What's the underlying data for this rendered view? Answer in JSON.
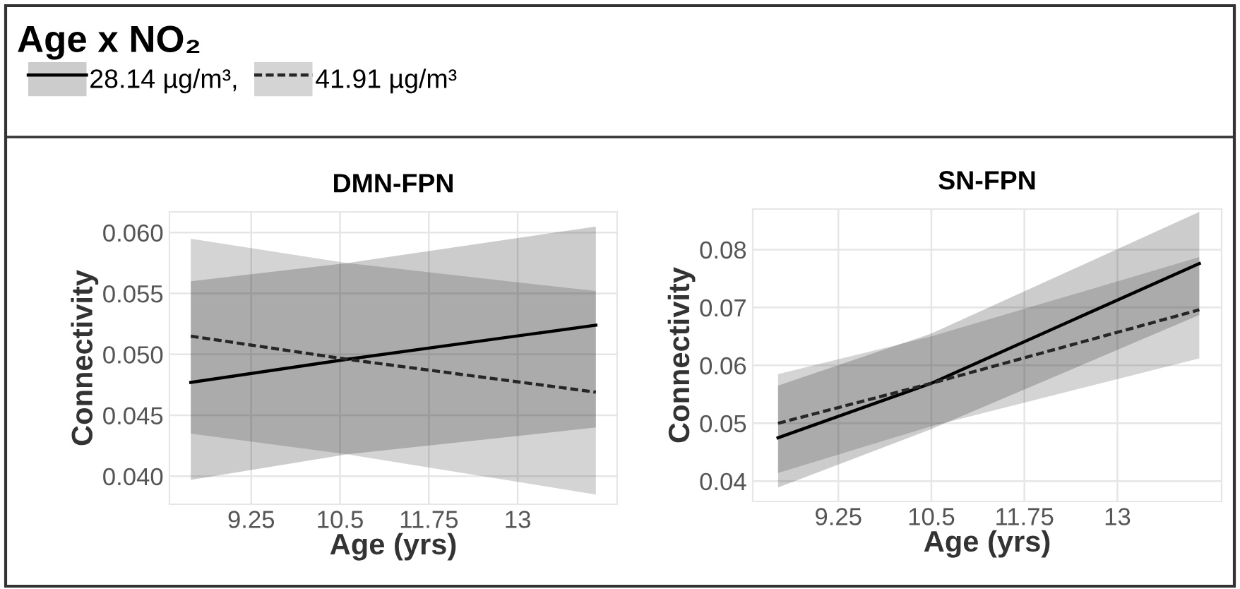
{
  "chart_data": [
    {
      "type": "other",
      "title": "Age x NO₂"
    },
    {
      "type": "line",
      "title": "DMN-FPN",
      "xlabel": "Age (yrs)",
      "ylabel": "Connectivity",
      "legend": "top",
      "grid": true,
      "marker": "none",
      "xlim": [
        8.1,
        14.4
      ],
      "xticks": [
        9.25,
        10.5,
        11.75,
        13
      ],
      "ylim": [
        0.0377,
        0.0617
      ],
      "yticks": [
        {
          "value": 0.04,
          "label": "0.040"
        },
        {
          "value": 0.045,
          "label": "0.045"
        },
        {
          "value": 0.05,
          "label": "0.050"
        },
        {
          "value": 0.055,
          "label": "0.055"
        },
        {
          "value": 0.06,
          "label": "0.060"
        }
      ],
      "series": [
        {
          "name": "28.14 µg/m³,",
          "color": "#000000",
          "line_style": "solid",
          "x": [
            8.4,
            10.6,
            14.1
          ],
          "values": [
            0.0477,
            0.0496,
            0.0524
          ],
          "lower": [
            0.0397,
            0.0418,
            0.044
          ],
          "upper": [
            0.056,
            0.0575,
            0.0605
          ]
        },
        {
          "name": "41.91 µg/m³",
          "color": "#262626",
          "line_style": "dashed",
          "x": [
            8.4,
            10.6,
            14.1
          ],
          "values": [
            0.0515,
            0.0496,
            0.0469
          ],
          "lower": [
            0.0435,
            0.0418,
            0.0385
          ],
          "upper": [
            0.0595,
            0.0575,
            0.0552
          ]
        }
      ]
    },
    {
      "type": "line",
      "title": "SN-FPN",
      "xlabel": "Age (yrs)",
      "ylabel": "Connectivity",
      "grid": true,
      "marker": "none",
      "xlim": [
        8.1,
        14.4
      ],
      "xticks": [
        9.25,
        10.5,
        11.75,
        13
      ],
      "ylim": [
        0.0365,
        0.087
      ],
      "yticks": [
        0.04,
        0.05,
        0.06,
        0.07,
        0.08
      ],
      "series": [
        {
          "color": "#000000",
          "line_style": "solid",
          "x": [
            8.44,
            10.5,
            14.1
          ],
          "values": [
            0.0475,
            0.0569,
            0.0776
          ],
          "lower": [
            0.0389,
            0.049,
            0.0687
          ],
          "upper": [
            0.0565,
            0.0655,
            0.0865
          ]
        },
        {
          "color": "#262626",
          "line_style": "dashed",
          "x": [
            8.44,
            10.5,
            14.1
          ],
          "values": [
            0.05,
            0.0569,
            0.0696
          ],
          "lower": [
            0.0414,
            0.0495,
            0.0612
          ],
          "upper": [
            0.0585,
            0.065,
            0.0787
          ]
        }
      ]
    }
  ]
}
